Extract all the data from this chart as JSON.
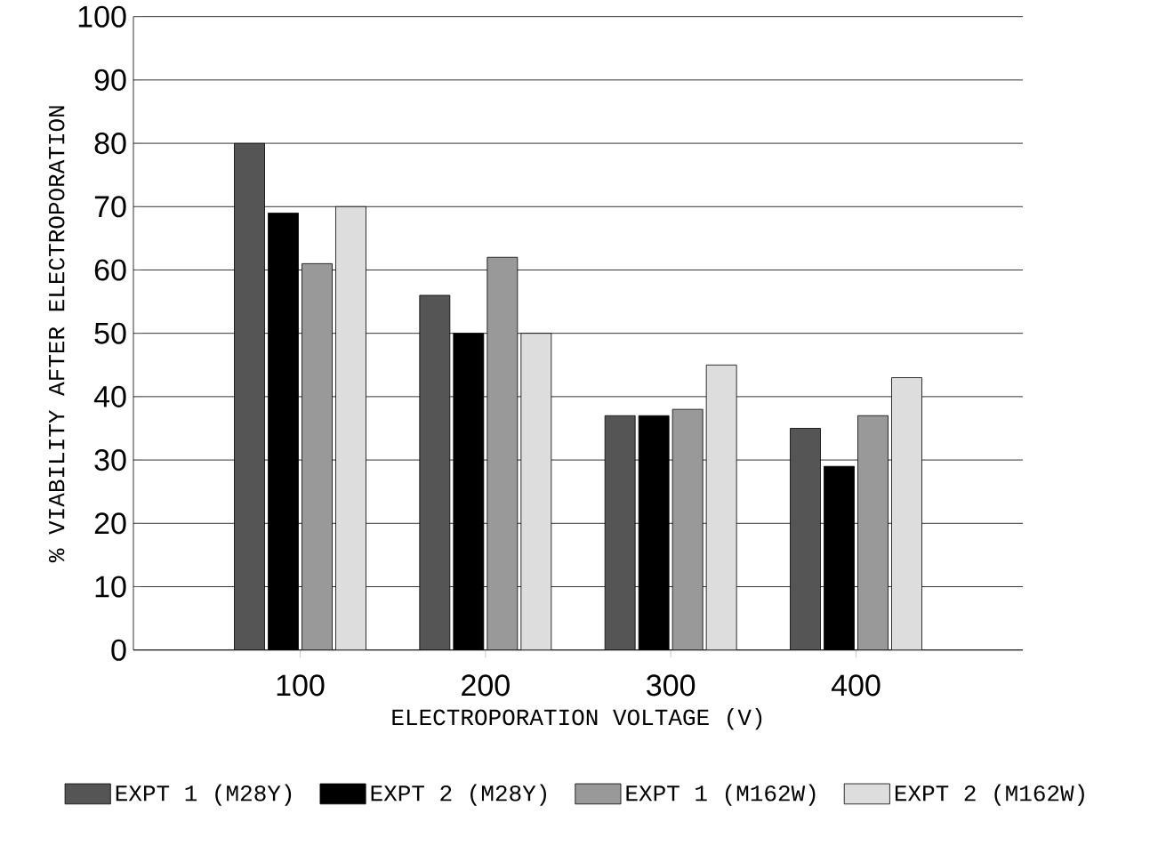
{
  "chart_data": {
    "type": "bar",
    "xlabel": "ELECTROPORATION VOLTAGE (V)",
    "ylabel": "% VIABILITY AFTER ELECTROPORATION",
    "categories": [
      "100",
      "200",
      "300",
      "400"
    ],
    "series": [
      {
        "name": "EXPT 1 (M28Y)",
        "color": "#555555",
        "values": [
          80,
          56,
          37,
          35
        ]
      },
      {
        "name": "EXPT 2 (M28Y)",
        "color": "#000000",
        "values": [
          69,
          50,
          37,
          29
        ]
      },
      {
        "name": "EXPT 1 (M162W)",
        "color": "#999999",
        "values": [
          61,
          62,
          38,
          37
        ]
      },
      {
        "name": "EXPT 2 (M162W)",
        "color": "#dddddd",
        "values": [
          70,
          50,
          45,
          43
        ]
      }
    ],
    "ylim": [
      0,
      100
    ],
    "yticks": [
      0,
      10,
      20,
      30,
      40,
      50,
      60,
      70,
      80,
      90,
      100
    ],
    "grid": "y",
    "legend": "bottom"
  }
}
